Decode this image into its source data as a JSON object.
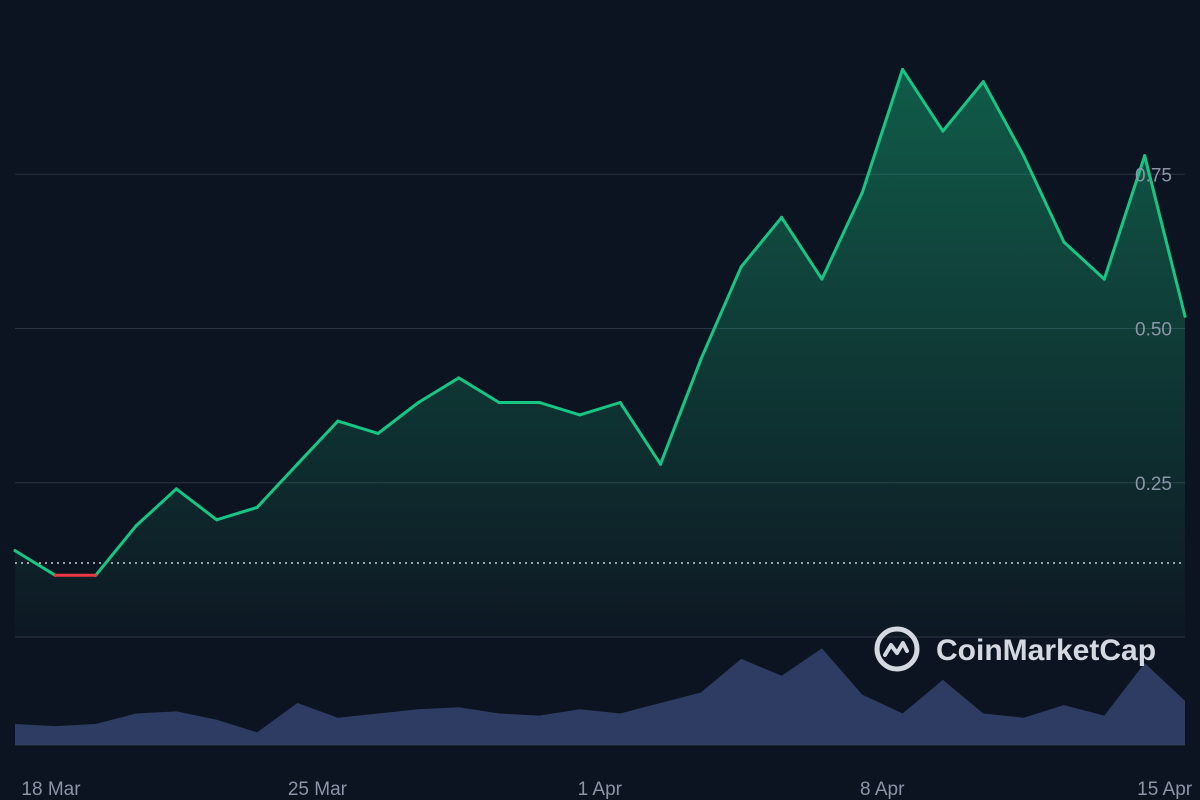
{
  "brand": {
    "name": "CoinMarketCap"
  },
  "colors": {
    "background": "#0d1421",
    "gridline": "#2a3343",
    "up_line": "#16c784",
    "down_line": "#ea3943",
    "baseline": "#c9ced6",
    "volume": "#3a4a7a",
    "tick_text": "#8b95a7",
    "brand": "#d4d8e0"
  },
  "chart_data": {
    "type": "area",
    "x_range": [
      "2024-03-18",
      "2024-04-16"
    ],
    "ylim": [
      0,
      1.0
    ],
    "y_ticks": [
      0.25,
      0.5,
      0.75
    ],
    "y_tick_labels": [
      "0.25",
      "0.50",
      "0.75"
    ],
    "x_tick_labels": [
      "18 Mar",
      "25 Mar",
      "1 Apr",
      "8 Apr",
      "15 Apr"
    ],
    "grid": true,
    "baseline_value": 0.12,
    "price_series": {
      "x": [
        "2024-03-18",
        "2024-03-19",
        "2024-03-20",
        "2024-03-21",
        "2024-03-22",
        "2024-03-23",
        "2024-03-24",
        "2024-03-25",
        "2024-03-26",
        "2024-03-27",
        "2024-03-28",
        "2024-03-29",
        "2024-03-30",
        "2024-03-31",
        "2024-04-01",
        "2024-04-02",
        "2024-04-03",
        "2024-04-04",
        "2024-04-05",
        "2024-04-06",
        "2024-04-07",
        "2024-04-08",
        "2024-04-09",
        "2024-04-10",
        "2024-04-11",
        "2024-04-12",
        "2024-04-13",
        "2024-04-14",
        "2024-04-15",
        "2024-04-16"
      ],
      "values": [
        0.14,
        0.1,
        0.1,
        0.18,
        0.24,
        0.19,
        0.21,
        0.28,
        0.35,
        0.33,
        0.38,
        0.42,
        0.38,
        0.38,
        0.36,
        0.38,
        0.28,
        0.45,
        0.6,
        0.68,
        0.58,
        0.72,
        0.92,
        0.82,
        0.9,
        0.78,
        0.64,
        0.58,
        0.78,
        0.52
      ]
    },
    "volume_series": {
      "x": [
        "2024-03-18",
        "2024-03-19",
        "2024-03-20",
        "2024-03-21",
        "2024-03-22",
        "2024-03-23",
        "2024-03-24",
        "2024-03-25",
        "2024-03-26",
        "2024-03-27",
        "2024-03-28",
        "2024-03-29",
        "2024-03-30",
        "2024-03-31",
        "2024-04-01",
        "2024-04-02",
        "2024-04-03",
        "2024-04-04",
        "2024-04-05",
        "2024-04-06",
        "2024-04-07",
        "2024-04-08",
        "2024-04-09",
        "2024-04-10",
        "2024-04-11",
        "2024-04-12",
        "2024-04-13",
        "2024-04-14",
        "2024-04-15",
        "2024-04-16"
      ],
      "relative_values": [
        0.2,
        0.18,
        0.2,
        0.3,
        0.32,
        0.24,
        0.12,
        0.4,
        0.26,
        0.3,
        0.34,
        0.36,
        0.3,
        0.28,
        0.34,
        0.3,
        0.4,
        0.5,
        0.82,
        0.66,
        0.92,
        0.48,
        0.3,
        0.62,
        0.3,
        0.26,
        0.38,
        0.28,
        0.78,
        0.42
      ]
    }
  }
}
